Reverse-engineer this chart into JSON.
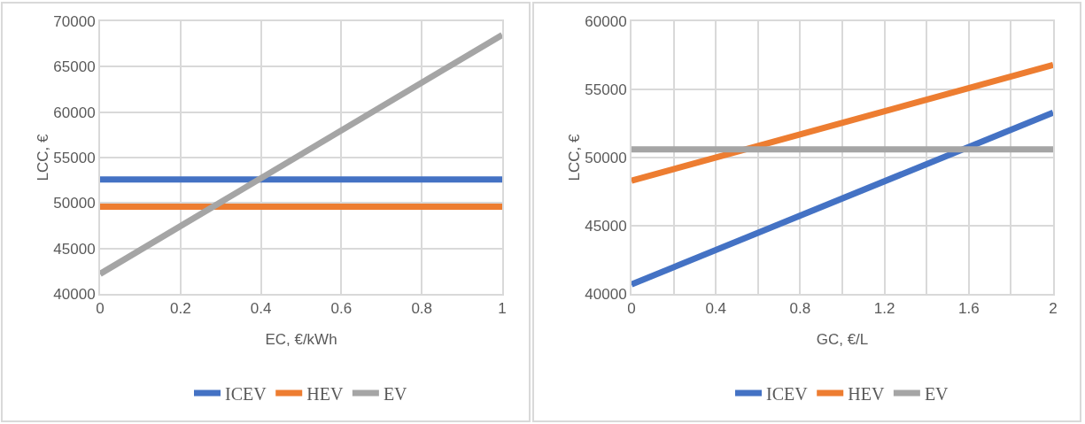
{
  "chart_data": [
    {
      "type": "line",
      "xlabel": "EC, €/kWh",
      "ylabel": "LCC, €",
      "x": [
        0,
        1
      ],
      "xlim": [
        0,
        1
      ],
      "xticks": [
        0,
        0.2,
        0.4,
        0.6,
        0.8,
        1
      ],
      "ylim": [
        40000,
        70000
      ],
      "yticks": [
        40000,
        45000,
        50000,
        55000,
        60000,
        65000,
        70000
      ],
      "grid": true,
      "legend": "bottom",
      "marker": "none",
      "line_style": "solid",
      "series": [
        {
          "name": "ICEV",
          "color": "#4472c4",
          "values": [
            52600,
            52600
          ]
        },
        {
          "name": "HEV",
          "color": "#ed7d31",
          "values": [
            49600,
            49600
          ]
        },
        {
          "name": "EV",
          "color": "#a5a5a5",
          "values": [
            42200,
            68500
          ]
        }
      ]
    },
    {
      "type": "line",
      "xlabel": "GC, €/L",
      "ylabel": "LCC, €",
      "x": [
        0,
        2
      ],
      "xlim": [
        0,
        2
      ],
      "xticks": [
        0,
        {
          "value": 0.2,
          "label": null
        },
        0.4,
        {
          "value": 0.6,
          "label": null
        },
        0.8,
        {
          "value": 1,
          "label": null
        },
        1.2,
        {
          "value": 1.4,
          "label": null
        },
        1.6,
        {
          "value": 1.8,
          "label": null
        },
        2
      ],
      "ylim": [
        40000,
        60000
      ],
      "yticks": [
        40000,
        45000,
        50000,
        55000,
        60000
      ],
      "grid": true,
      "legend": "bottom",
      "marker": "none",
      "line_style": "solid",
      "series": [
        {
          "name": "ICEV",
          "color": "#4472c4",
          "values": [
            40700,
            53300
          ]
        },
        {
          "name": "HEV",
          "color": "#ed7d31",
          "values": [
            48300,
            56800
          ]
        },
        {
          "name": "EV",
          "color": "#a5a5a5",
          "values": [
            50600,
            50600
          ]
        }
      ]
    }
  ]
}
